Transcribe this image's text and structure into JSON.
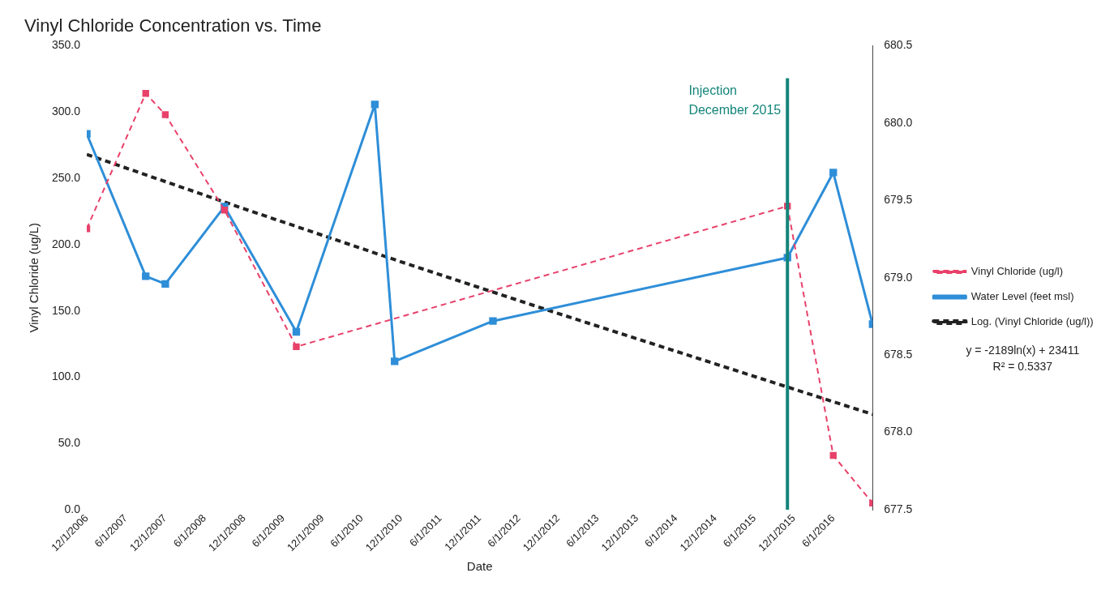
{
  "chart_data": {
    "type": "line",
    "title": "Vinyl Chloride Concentration vs. Time",
    "xlabel": "Date",
    "ylabel": "Vinyl Chloride (ug/L)",
    "xlim": [
      "2006-12-01",
      "2016-12-01"
    ],
    "xticks": [
      {
        "value": "2006-12-01",
        "label": "12/1/2006"
      },
      {
        "value": "2007-06-01",
        "label": "6/1/2007"
      },
      {
        "value": "2007-12-01",
        "label": "12/1/2007"
      },
      {
        "value": "2008-06-01",
        "label": "6/1/2008"
      },
      {
        "value": "2008-12-01",
        "label": "12/1/2008"
      },
      {
        "value": "2009-06-01",
        "label": "6/1/2009"
      },
      {
        "value": "2009-12-01",
        "label": "12/1/2009"
      },
      {
        "value": "2010-06-01",
        "label": "6/1/2010"
      },
      {
        "value": "2010-12-01",
        "label": "12/1/2010"
      },
      {
        "value": "2011-06-01",
        "label": "6/1/2011"
      },
      {
        "value": "2011-12-01",
        "label": "12/1/2011"
      },
      {
        "value": "2012-06-01",
        "label": "6/1/2012"
      },
      {
        "value": "2012-12-01",
        "label": "12/1/2012"
      },
      {
        "value": "2013-06-01",
        "label": "6/1/2013"
      },
      {
        "value": "2013-12-01",
        "label": "12/1/2013"
      },
      {
        "value": "2014-06-01",
        "label": "6/1/2014"
      },
      {
        "value": "2014-12-01",
        "label": "12/1/2014"
      },
      {
        "value": "2015-06-01",
        "label": "6/1/2015"
      },
      {
        "value": "2015-12-01",
        "label": "12/1/2015"
      },
      {
        "value": "2016-06-01",
        "label": "6/1/2016"
      }
    ],
    "ylim": [
      0,
      350
    ],
    "yticks": [
      {
        "value": 0,
        "label": "0.0"
      },
      {
        "value": 50,
        "label": "50.0"
      },
      {
        "value": 100,
        "label": "100.0"
      },
      {
        "value": 150,
        "label": "150.0"
      },
      {
        "value": 200,
        "label": "200.0"
      },
      {
        "value": 250,
        "label": "250.0"
      },
      {
        "value": 300,
        "label": "300.0"
      },
      {
        "value": 350,
        "label": "350.0"
      }
    ],
    "y2lim": [
      677.5,
      680.5
    ],
    "y2ticks": [
      677.5,
      {
        "value": 678,
        "label": "678.0"
      },
      678.5,
      {
        "value": 679,
        "label": "679.0"
      },
      679.5,
      {
        "value": 680,
        "label": "680.0"
      },
      680.5
    ],
    "series": [
      {
        "name": "Vinyl Chloride (ug/l)",
        "color": "#e8416a",
        "line_style": "dashed",
        "marker": "square",
        "x": [
          "2006-12",
          "2007-09",
          "2007-12",
          "2008-09",
          "2009-08",
          "2015-11",
          "2016-06",
          "2016-12"
        ],
        "values": [
          212,
          314,
          298,
          226,
          123,
          229,
          41,
          5
        ]
      },
      {
        "name": "Water Level (feet msl)",
        "color": "#2e8ed8",
        "line_style": "solid",
        "marker": "square",
        "axis": "y2",
        "x": [
          "2006-12",
          "2007-09",
          "2007-12",
          "2008-09",
          "2009-08",
          "2010-08",
          "2010-11",
          "2012-02",
          "2015-11",
          "2016-06",
          "2016-12"
        ],
        "values": [
          679.93,
          679.01,
          678.96,
          679.46,
          678.65,
          680.12,
          678.46,
          678.72,
          679.13,
          679.68,
          678.7
        ]
      },
      {
        "name": "Log. (Vinyl Chloride (ug/l))",
        "color": "#222222",
        "line_style": "dashed",
        "marker": "none",
        "x": [
          "2006-12-01",
          "2008-12-01",
          "2010-12-01",
          "2012-12-01",
          "2014-12-01",
          "2016-12-01"
        ],
        "values": [
          268,
          227,
          187,
          148,
          110,
          72
        ]
      }
    ],
    "ref_lines": [
      {
        "axis": "x",
        "value": "2015-11",
        "label": "Injection December 2015",
        "color": "#14857a"
      }
    ],
    "annotations": [
      "y = -2189ln(x) + 23411",
      "R² = 0.5337"
    ],
    "legend": "right",
    "grid": false
  }
}
